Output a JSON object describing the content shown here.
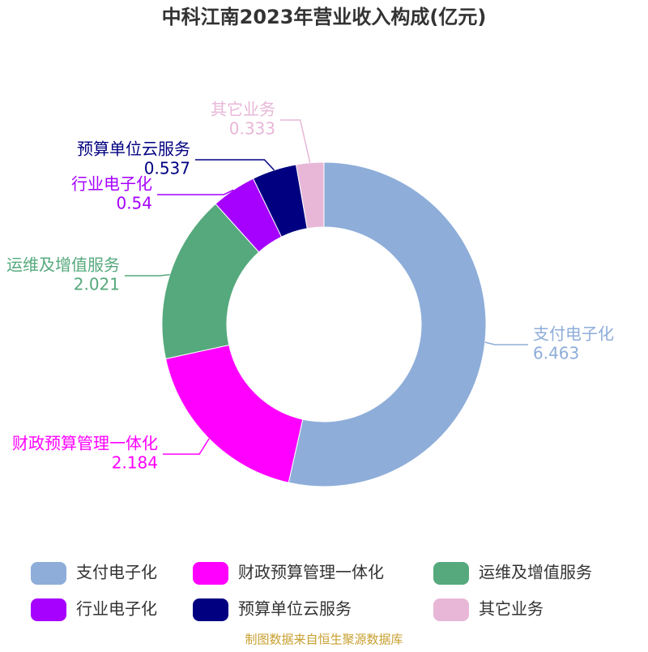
{
  "chart_data": {
    "type": "donut",
    "title": "中科江南2023年营业收入构成(亿元)",
    "categories": [
      "支付电子化",
      "财政预算管理一体化",
      "运维及增值服务",
      "行业电子化",
      "预算单位云服务",
      "其它业务"
    ],
    "values": [
      6.463,
      2.184,
      2.021,
      0.54,
      0.537,
      0.333
    ],
    "colors": [
      "#8eadd9",
      "#ff00ff",
      "#55a97c",
      "#a600ff",
      "#000080",
      "#e8b7d8"
    ],
    "source": "制图数据来自恒生聚源数据库"
  }
}
